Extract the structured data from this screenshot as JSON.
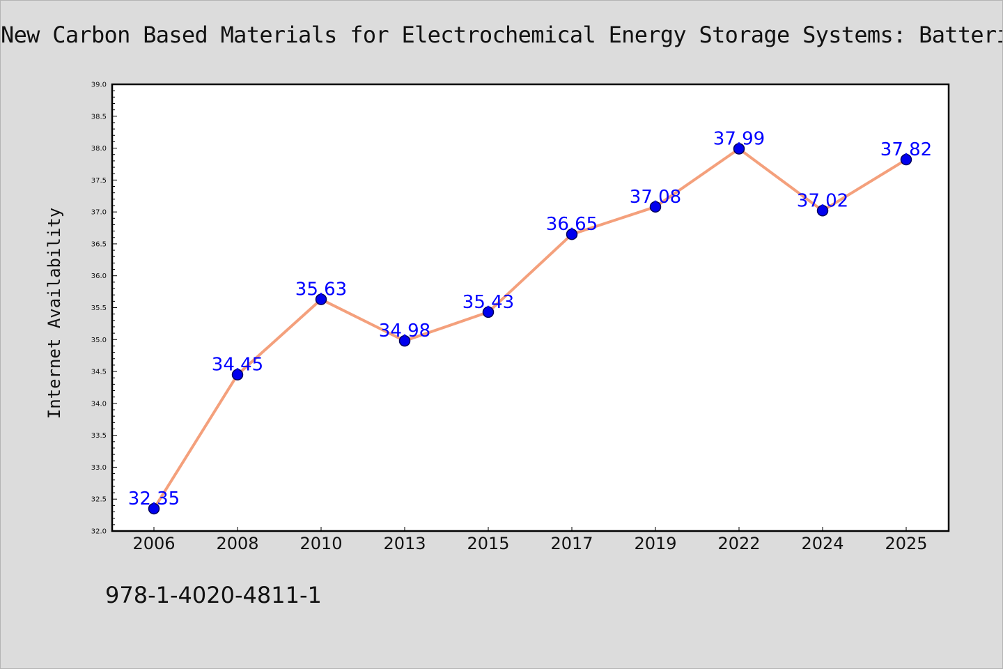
{
  "chart_data": {
    "type": "line",
    "title": "New Carbon Based Materials for Electrochemical Energy Storage Systems: Batteries",
    "ylabel": "Internet Availability",
    "xlabel": "",
    "categories": [
      "2006",
      "2008",
      "2010",
      "2013",
      "2015",
      "2017",
      "2019",
      "2022",
      "2024",
      "2025"
    ],
    "values": [
      32.35,
      34.45,
      35.63,
      34.98,
      35.43,
      36.65,
      37.08,
      37.99,
      37.02,
      37.82
    ],
    "data_labels": [
      "32.35",
      "34.45",
      "35.63",
      "34.98",
      "35.43",
      "36.65",
      "37.08",
      "37.99",
      "37.02",
      "37.82"
    ],
    "ylim": [
      32.0,
      39.0
    ],
    "yticks": [
      32.0,
      32.5,
      33.0,
      33.5,
      34.0,
      34.5,
      35.0,
      35.5,
      36.0,
      36.5,
      37.0,
      37.5,
      38.0,
      38.5,
      39.0
    ],
    "ytick_labels": [
      "32.0",
      "32.5",
      "33.0",
      "33.5",
      "34.0",
      "34.5",
      "35.0",
      "35.5",
      "36.0",
      "36.5",
      "37.0",
      "37.5",
      "38.0",
      "38.5",
      "39.0"
    ],
    "grid": false,
    "legend": "none",
    "colors": {
      "line": "#f4a07c",
      "marker": "#0000ee",
      "marker_edge": "#00005a",
      "data_label": "#0000ff",
      "background": "#dcdcdc",
      "plot_area": "#ffffff"
    }
  },
  "footer": {
    "isbn": "978-1-4020-4811-1"
  }
}
